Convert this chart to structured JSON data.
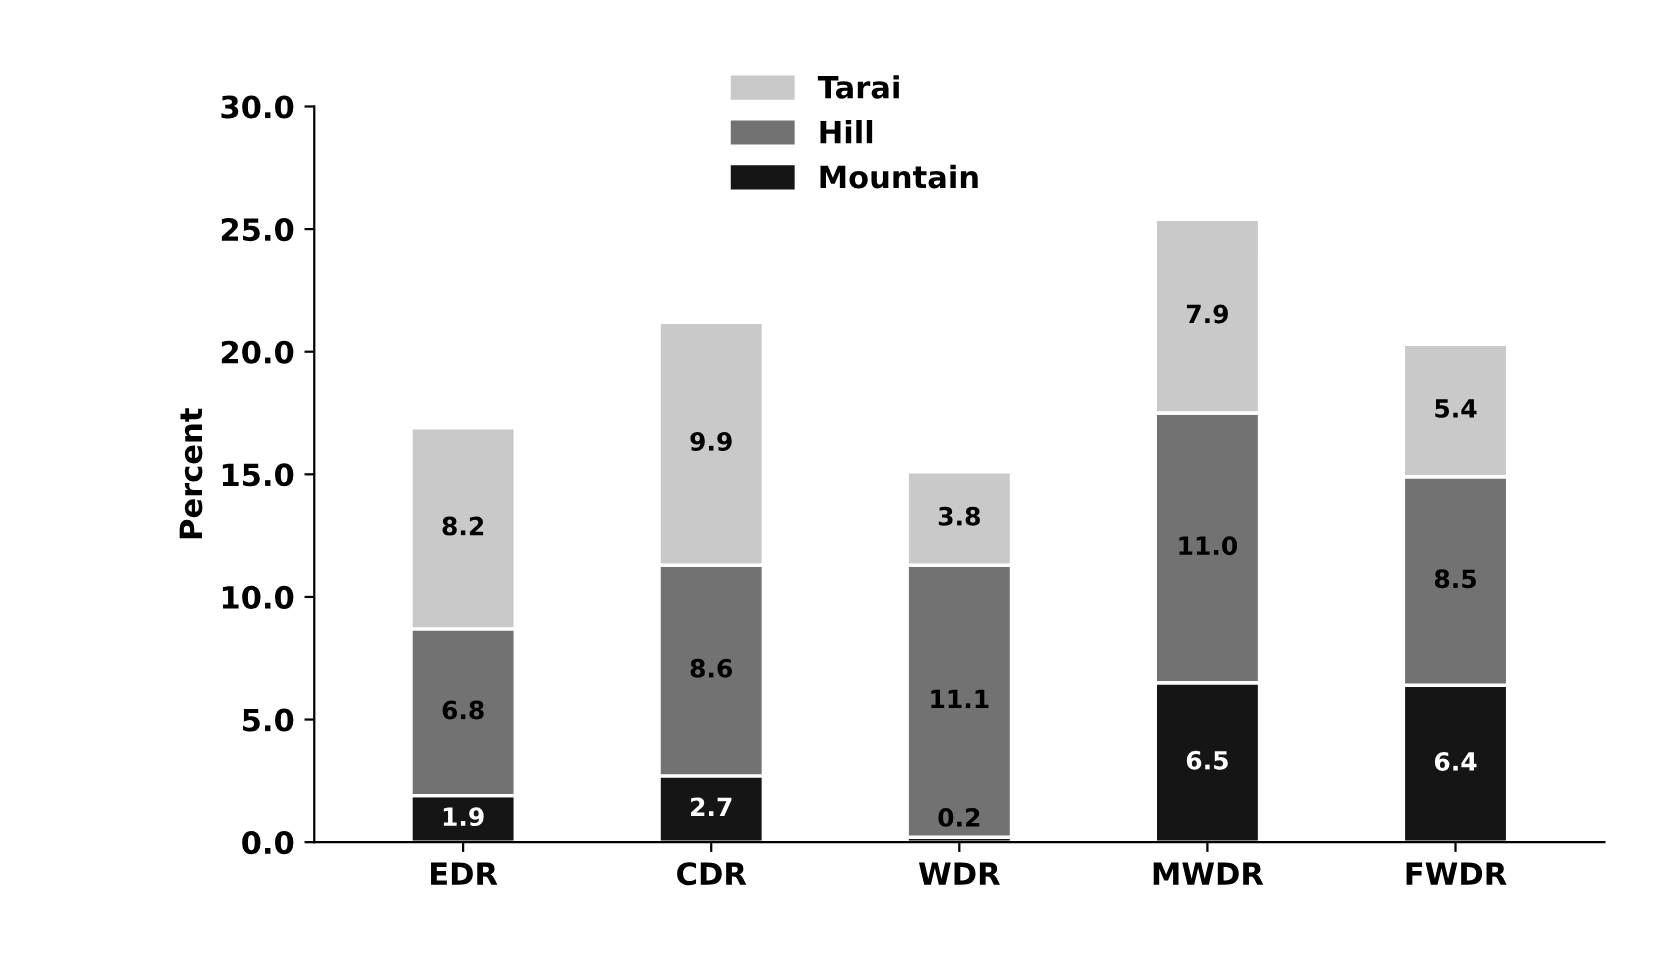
{
  "chart_data": {
    "type": "bar",
    "stacked": true,
    "ylabel": "Percent",
    "categories": [
      "EDR",
      "CDR",
      "WDR",
      "MWDR",
      "FWDR"
    ],
    "series": [
      {
        "name": "Mountain",
        "color": "#151515",
        "values": [
          1.9,
          2.7,
          0.2,
          6.5,
          6.4
        ],
        "value_labels": [
          "1.9",
          "2.7",
          "0.2",
          "6.5",
          "6.4"
        ]
      },
      {
        "name": "Hill",
        "color": "#727272",
        "values": [
          6.8,
          8.6,
          11.1,
          11.0,
          8.5
        ],
        "value_labels": [
          "6.8",
          "8.6",
          "11.1",
          "11.0",
          "8.5"
        ]
      },
      {
        "name": "Tarai",
        "color": "#c9c9c9",
        "values": [
          8.2,
          9.9,
          3.8,
          7.9,
          5.4
        ],
        "value_labels": [
          "8.2",
          "9.9",
          "3.8",
          "7.9",
          "5.4"
        ]
      }
    ],
    "ylim": [
      0,
      30
    ],
    "yticks": [
      {
        "value": 0,
        "label": "0.0"
      },
      {
        "value": 5,
        "label": "5.0"
      },
      {
        "value": 10,
        "label": "10.0"
      },
      {
        "value": 15,
        "label": "15.0"
      },
      {
        "value": 20,
        "label": "20.0"
      },
      {
        "value": 25,
        "label": "25.0"
      },
      {
        "value": 30,
        "label": "30.0"
      }
    ],
    "legend": "top",
    "grid": false
  }
}
